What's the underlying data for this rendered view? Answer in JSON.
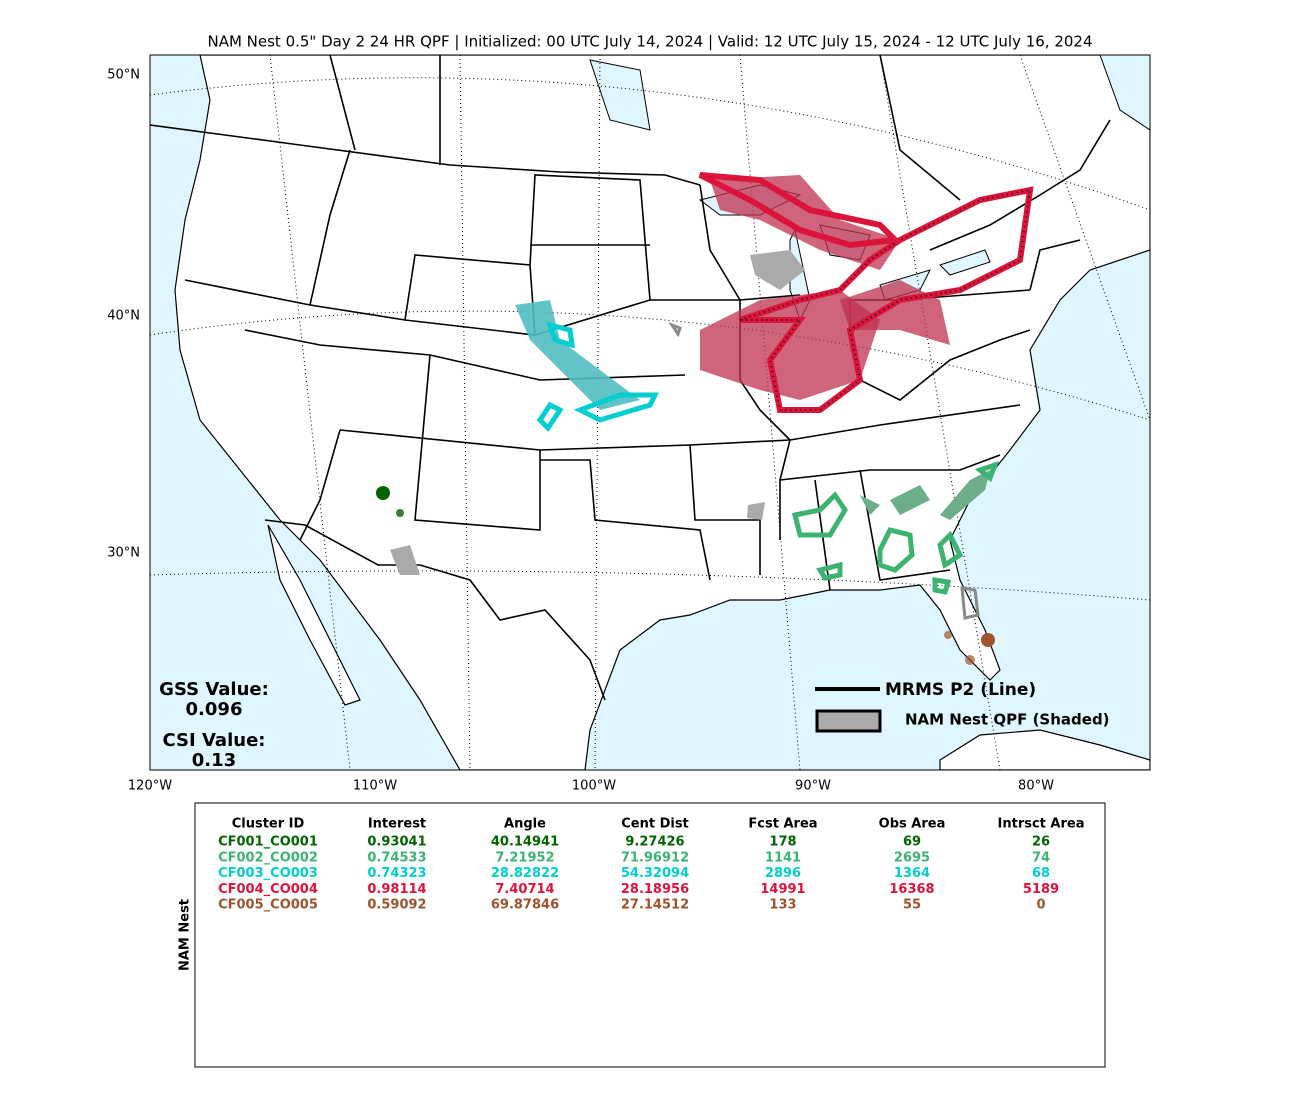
{
  "title": "NAM Nest 0.5\" Day 2 24 HR QPF | Initialized: 00 UTC July 14, 2024 | Valid: 12 UTC July 15, 2024 - 12 UTC July 16, 2024",
  "map": {
    "lat_labels": [
      "50°N",
      "40°N",
      "30°N"
    ],
    "lon_labels": [
      "120°W",
      "110°W",
      "100°W",
      "90°W",
      "80°W"
    ],
    "scores": {
      "gss_label": "GSS Value:",
      "gss_value": "0.096",
      "csi_label": "CSI Value:",
      "csi_value": "0.13"
    },
    "legend": [
      "MRMS P2 (Line)",
      "NAM Nest QPF (Shaded)"
    ]
  },
  "table": {
    "side_label": "NAM Nest",
    "header": [
      "Cluster ID",
      "Interest",
      "Angle",
      "Cent Dist",
      "Fcst Area",
      "Obs Area",
      "Intrsct Area"
    ],
    "row_colors": [
      "#006400",
      "#3cb371",
      "#00ced1",
      "#dc143c",
      "#a0522d"
    ],
    "rows": [
      [
        "CF001_CO001",
        0.93041,
        40.14941,
        9.27426,
        178,
        69,
        26
      ],
      [
        "CF002_CO002",
        0.74533,
        7.21952,
        71.96912,
        1141,
        2695,
        74
      ],
      [
        "CF003_CO003",
        0.74323,
        28.82822,
        54.32094,
        2896,
        1364,
        68
      ],
      [
        "CF004_CO004",
        0.98114,
        7.40714,
        28.18956,
        14991,
        16368,
        5189
      ],
      [
        "CF005_CO005",
        0.59092,
        69.87846,
        27.14512,
        133,
        55,
        0
      ]
    ]
  }
}
